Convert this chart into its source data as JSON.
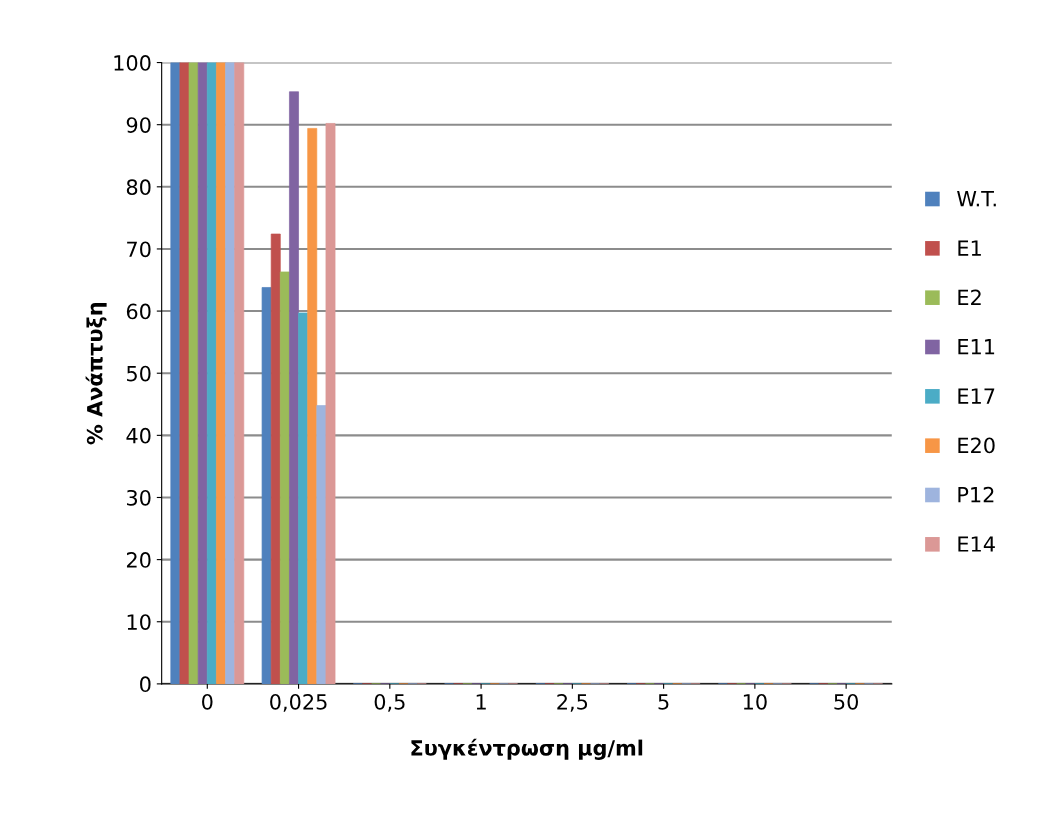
{
  "chart_data": {
    "type": "bar",
    "xlabel": "Συγκέντρωση μg/ml",
    "ylabel": "% Ανάπτυξη",
    "categories": [
      "0",
      "0,025",
      "0,5",
      "1",
      "2,5",
      "5",
      "10",
      "50"
    ],
    "series": [
      {
        "name": "W.T.",
        "color": "#4f81bd",
        "values": [
          100,
          63.8,
          0,
          0,
          0,
          0,
          0,
          0
        ]
      },
      {
        "name": "E1",
        "color": "#c0504d",
        "values": [
          100,
          72.4,
          0,
          0,
          0,
          0,
          0,
          0
        ]
      },
      {
        "name": "E2",
        "color": "#9bbb59",
        "values": [
          100,
          66.3,
          0,
          0,
          0,
          0,
          0,
          0
        ]
      },
      {
        "name": "E11",
        "color": "#8064a2",
        "values": [
          100,
          95.3,
          0,
          0,
          0,
          0,
          0,
          0
        ]
      },
      {
        "name": "E17",
        "color": "#4bacc6",
        "values": [
          100,
          59.7,
          0,
          0,
          0,
          0,
          0,
          0
        ]
      },
      {
        "name": "E20",
        "color": "#f79646",
        "values": [
          100,
          89.4,
          0,
          0,
          0,
          0,
          0,
          0
        ]
      },
      {
        "name": "P12",
        "color": "#9eb4de",
        "values": [
          100,
          44.8,
          0,
          0,
          0,
          0,
          0,
          0
        ]
      },
      {
        "name": "E14",
        "color": "#db9896",
        "values": [
          100,
          90.2,
          0,
          0,
          0,
          0,
          0,
          0
        ]
      }
    ],
    "ylim": [
      0,
      100
    ],
    "yticks": [
      0,
      10,
      20,
      30,
      40,
      50,
      60,
      70,
      80,
      90,
      100
    ],
    "grid": "y",
    "legend": "right"
  }
}
